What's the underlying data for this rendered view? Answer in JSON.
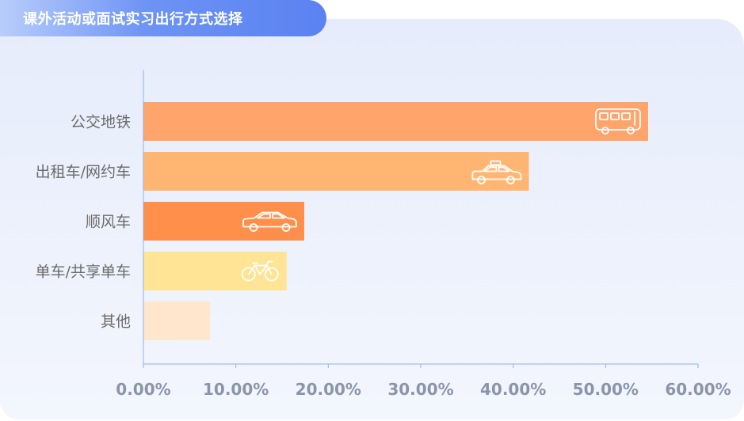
{
  "title": "课外活动或面试实习出行方式选择",
  "chart_data": {
    "type": "bar",
    "orientation": "horizontal",
    "categories": [
      "公交地铁",
      "出租车/网约车",
      "顺风车",
      "单车/共享单车",
      "其他"
    ],
    "values": [
      54.6,
      41.7,
      17.4,
      15.5,
      7.2
    ],
    "xlim": [
      0,
      60
    ],
    "xticks": [
      "0.00%",
      "10.00%",
      "20.00%",
      "30.00%",
      "40.00%",
      "50.00%",
      "60.00%"
    ],
    "colors": [
      "#ffa46b",
      "#ffb672",
      "#ff8f4a",
      "#ffe495",
      "#ffe6cc"
    ],
    "icons": [
      "bus-icon",
      "taxi-icon",
      "car-icon",
      "bicycle-icon",
      ""
    ],
    "grid": false,
    "legend": "none"
  }
}
